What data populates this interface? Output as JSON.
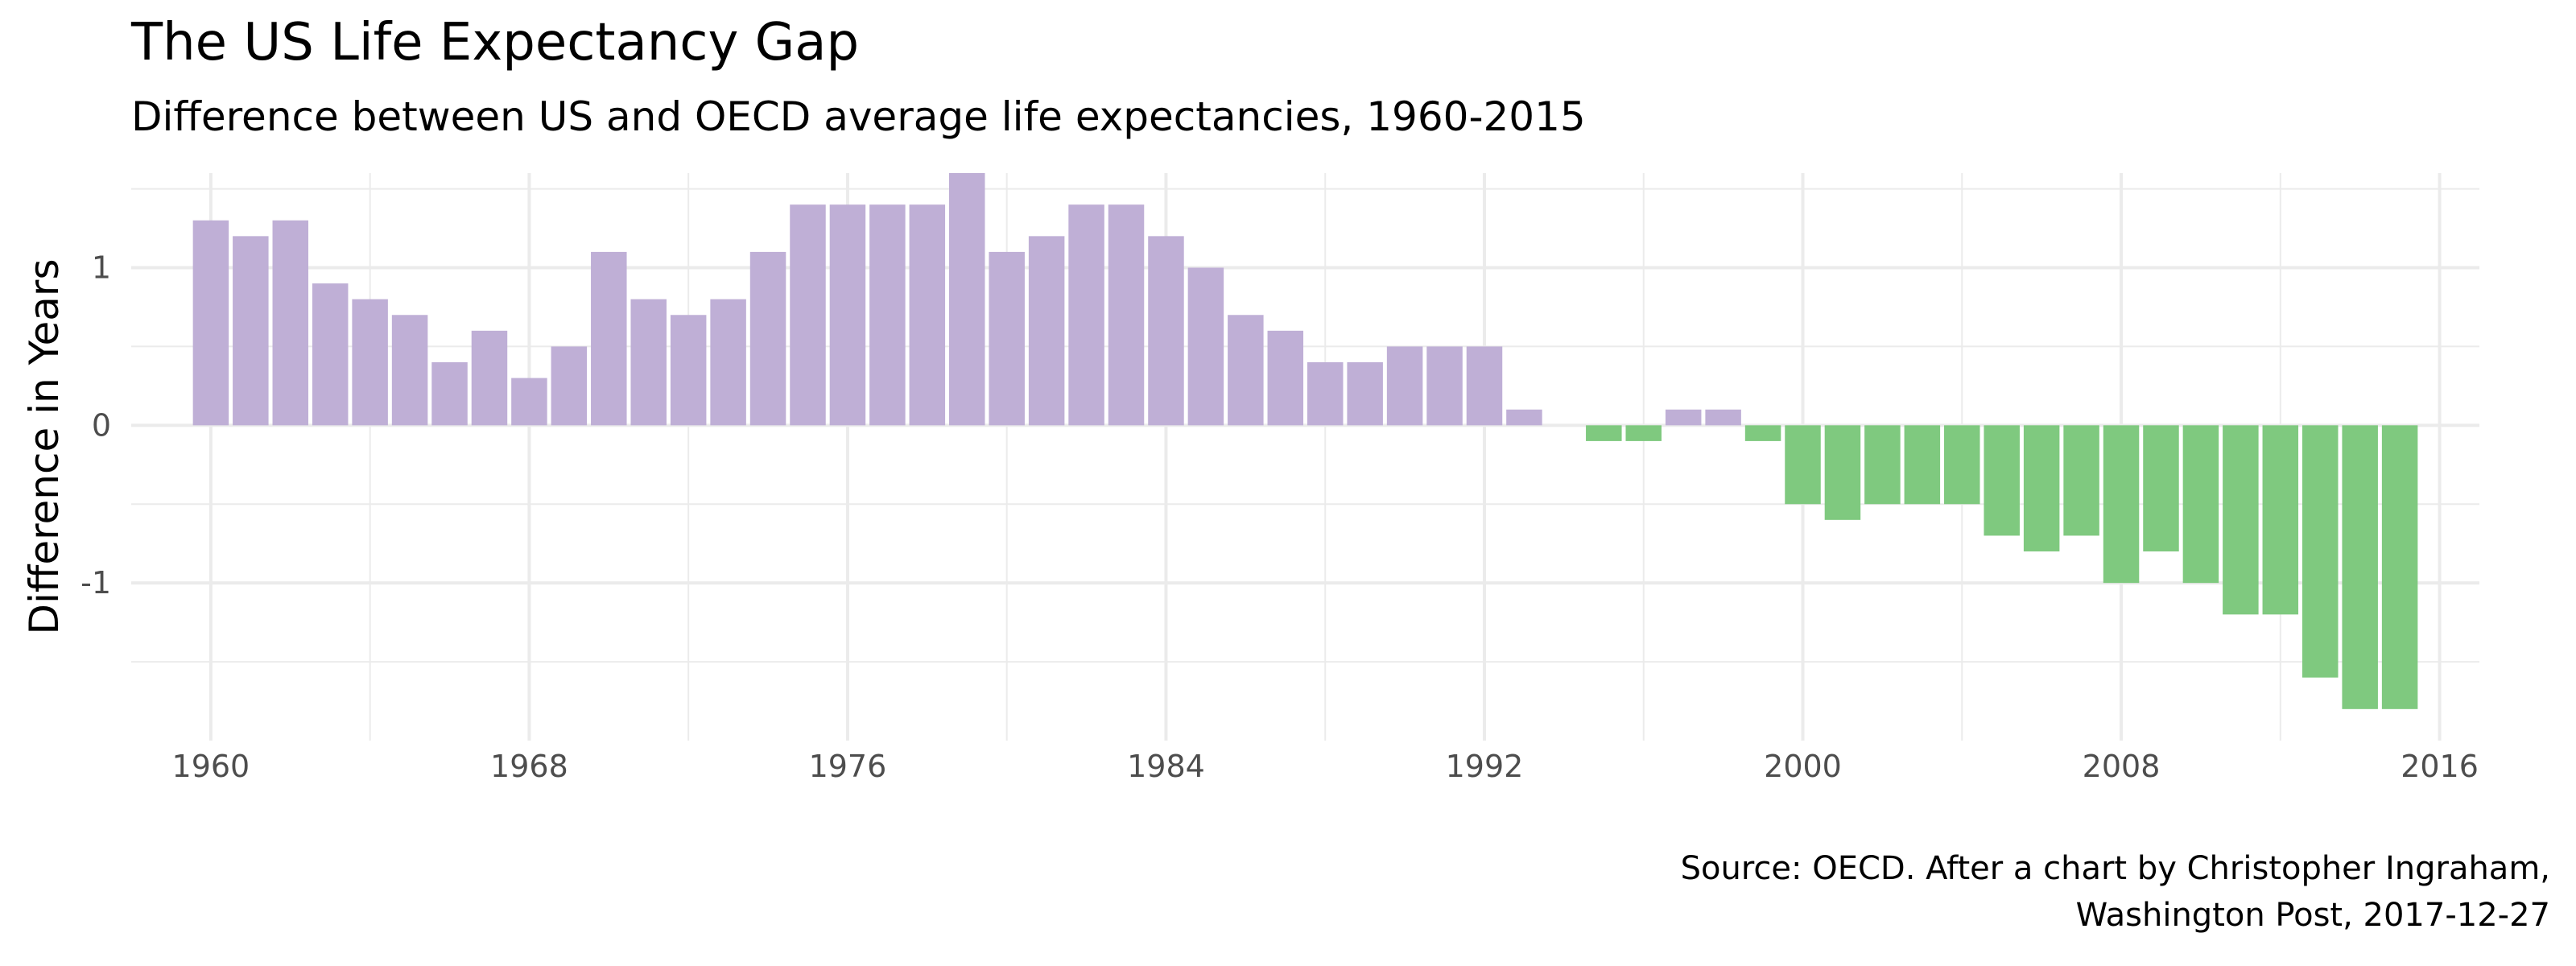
{
  "chart_data": {
    "type": "bar",
    "title": "The US Life Expectancy Gap",
    "subtitle": "Difference between US and OECD average life expectancies, 1960-2015",
    "caption_line1": "Source: OECD. After a chart by Christopher Ingraham,",
    "caption_line2": "Washington Post, 2017-12-27",
    "xlabel": "",
    "ylabel": "Difference in Years",
    "xlim": [
      1958,
      2017
    ],
    "ylim": [
      -2.0,
      1.6
    ],
    "x_ticks": [
      1960,
      1968,
      1976,
      1984,
      1992,
      2000,
      2008,
      2016
    ],
    "x_minor_ticks": [
      1964,
      1972,
      1980,
      1988,
      1996,
      2004,
      2012
    ],
    "y_ticks": [
      1,
      0,
      -1
    ],
    "y_tick_labels": [
      "1",
      "0",
      "-1"
    ],
    "y_minor_ticks": [
      1.5,
      0.5,
      -0.5,
      -1.5
    ],
    "grid": true,
    "legend": "none",
    "colors": {
      "positive": "#bfafd6",
      "negative": "#7fc97f",
      "grid": "#ebebeb"
    },
    "x": [
      1960,
      1961,
      1962,
      1963,
      1964,
      1965,
      1966,
      1967,
      1968,
      1969,
      1970,
      1971,
      1972,
      1973,
      1974,
      1975,
      1976,
      1977,
      1978,
      1979,
      1980,
      1981,
      1982,
      1983,
      1984,
      1985,
      1986,
      1987,
      1988,
      1989,
      1990,
      1991,
      1992,
      1993,
      1994,
      1995,
      1996,
      1997,
      1998,
      1999,
      2000,
      2001,
      2002,
      2003,
      2004,
      2005,
      2006,
      2007,
      2008,
      2009,
      2010,
      2011,
      2012,
      2013,
      2014,
      2015
    ],
    "values": [
      1.3,
      1.2,
      1.3,
      0.9,
      0.8,
      0.7,
      0.4,
      0.6,
      0.3,
      0.5,
      1.1,
      0.8,
      0.7,
      0.8,
      1.1,
      1.4,
      1.4,
      1.4,
      1.4,
      1.6,
      1.1,
      1.2,
      1.4,
      1.4,
      1.2,
      1.0,
      0.7,
      0.6,
      0.4,
      0.4,
      0.5,
      0.5,
      0.5,
      0.1,
      0.0,
      -0.1,
      -0.1,
      0.1,
      0.1,
      -0.1,
      -0.5,
      -0.6,
      -0.5,
      -0.5,
      -0.5,
      -0.7,
      -0.8,
      -0.7,
      -1.0,
      -0.8,
      -1.0,
      -1.2,
      -1.2,
      -1.6,
      -1.8,
      -1.8
    ]
  }
}
